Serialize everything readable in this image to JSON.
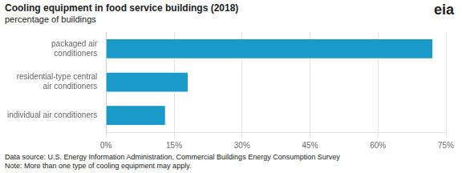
{
  "chart_data": {
    "type": "bar",
    "orientation": "horizontal",
    "title": "Cooling equipment in food service buildings (2018)",
    "subtitle": "percentage of buildings",
    "categories": [
      "packaged air\nconditioners",
      "residential-type central\nair conditioners",
      "individual air conditioners"
    ],
    "values": [
      72,
      18,
      13
    ],
    "color": "#1a9ac9",
    "xlim": [
      0,
      75
    ],
    "xticks": [
      {
        "value": 0,
        "label": "0%"
      },
      {
        "value": 15,
        "label": "15%"
      },
      {
        "value": 30,
        "label": "30%"
      },
      {
        "value": 45,
        "label": "45%"
      },
      {
        "value": 60,
        "label": "60%"
      },
      {
        "value": 75,
        "label": "75%"
      }
    ],
    "grid": true,
    "footnotes": [
      "Data source: U.S. Energy Information Administration, Commercial Buildings Energy Consumption Survey",
      "Note: More than one type of cooling equipment may apply."
    ],
    "logo": "eia"
  }
}
